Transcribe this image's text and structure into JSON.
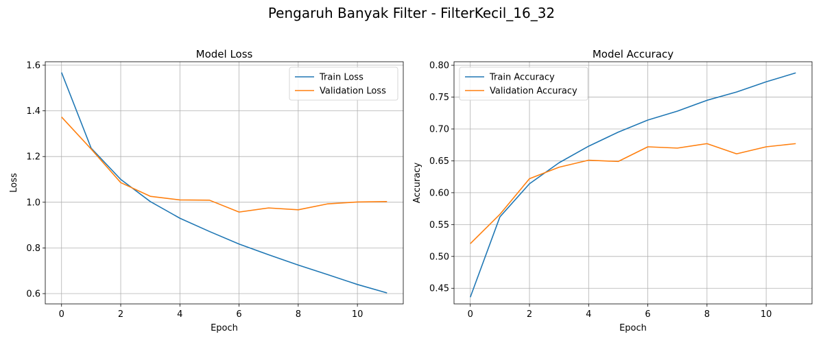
{
  "figure": {
    "suptitle": "Pengaruh Banyak Filter - FilterKecil_16_32"
  },
  "chart_data": [
    {
      "type": "line",
      "title": "Model Loss",
      "xlabel": "Epoch",
      "ylabel": "Loss",
      "x": [
        0,
        1,
        2,
        3,
        4,
        5,
        6,
        7,
        8,
        9,
        10,
        11
      ],
      "xlim": [
        -0.55,
        11.55
      ],
      "ylim": [
        0.555,
        1.615
      ],
      "xticks": [
        0,
        2,
        4,
        6,
        8,
        10
      ],
      "yticks": [
        0.6,
        0.8,
        1.0,
        1.2,
        1.4,
        1.6
      ],
      "ytick_decimals": 1,
      "grid": true,
      "legend_position": "upper right",
      "series": [
        {
          "name": "Train Loss",
          "color": "#1f77b4",
          "values": [
            1.568,
            1.237,
            1.1,
            1.003,
            0.93,
            0.872,
            0.817,
            0.77,
            0.725,
            0.683,
            0.64,
            0.603
          ]
        },
        {
          "name": "Validation Loss",
          "color": "#ff7f0e",
          "values": [
            1.373,
            1.233,
            1.086,
            1.026,
            1.01,
            1.009,
            0.957,
            0.975,
            0.967,
            0.993,
            1.001,
            1.003
          ]
        }
      ]
    },
    {
      "type": "line",
      "title": "Model Accuracy",
      "xlabel": "Epoch",
      "ylabel": "Accuracy",
      "x": [
        0,
        1,
        2,
        3,
        4,
        5,
        6,
        7,
        8,
        9,
        10,
        11
      ],
      "xlim": [
        -0.55,
        11.55
      ],
      "ylim": [
        0.4255,
        0.8055
      ],
      "xticks": [
        0,
        2,
        4,
        6,
        8,
        10
      ],
      "yticks": [
        0.45,
        0.5,
        0.55,
        0.6,
        0.65,
        0.7,
        0.75,
        0.8
      ],
      "ytick_decimals": 2,
      "grid": true,
      "legend_position": "upper left",
      "series": [
        {
          "name": "Train Accuracy",
          "color": "#1f77b4",
          "values": [
            0.436,
            0.562,
            0.614,
            0.647,
            0.673,
            0.695,
            0.714,
            0.728,
            0.745,
            0.758,
            0.774,
            0.788
          ]
        },
        {
          "name": "Validation Accuracy",
          "color": "#ff7f0e",
          "values": [
            0.52,
            0.566,
            0.622,
            0.64,
            0.651,
            0.649,
            0.672,
            0.67,
            0.677,
            0.661,
            0.672,
            0.677
          ]
        }
      ]
    }
  ]
}
